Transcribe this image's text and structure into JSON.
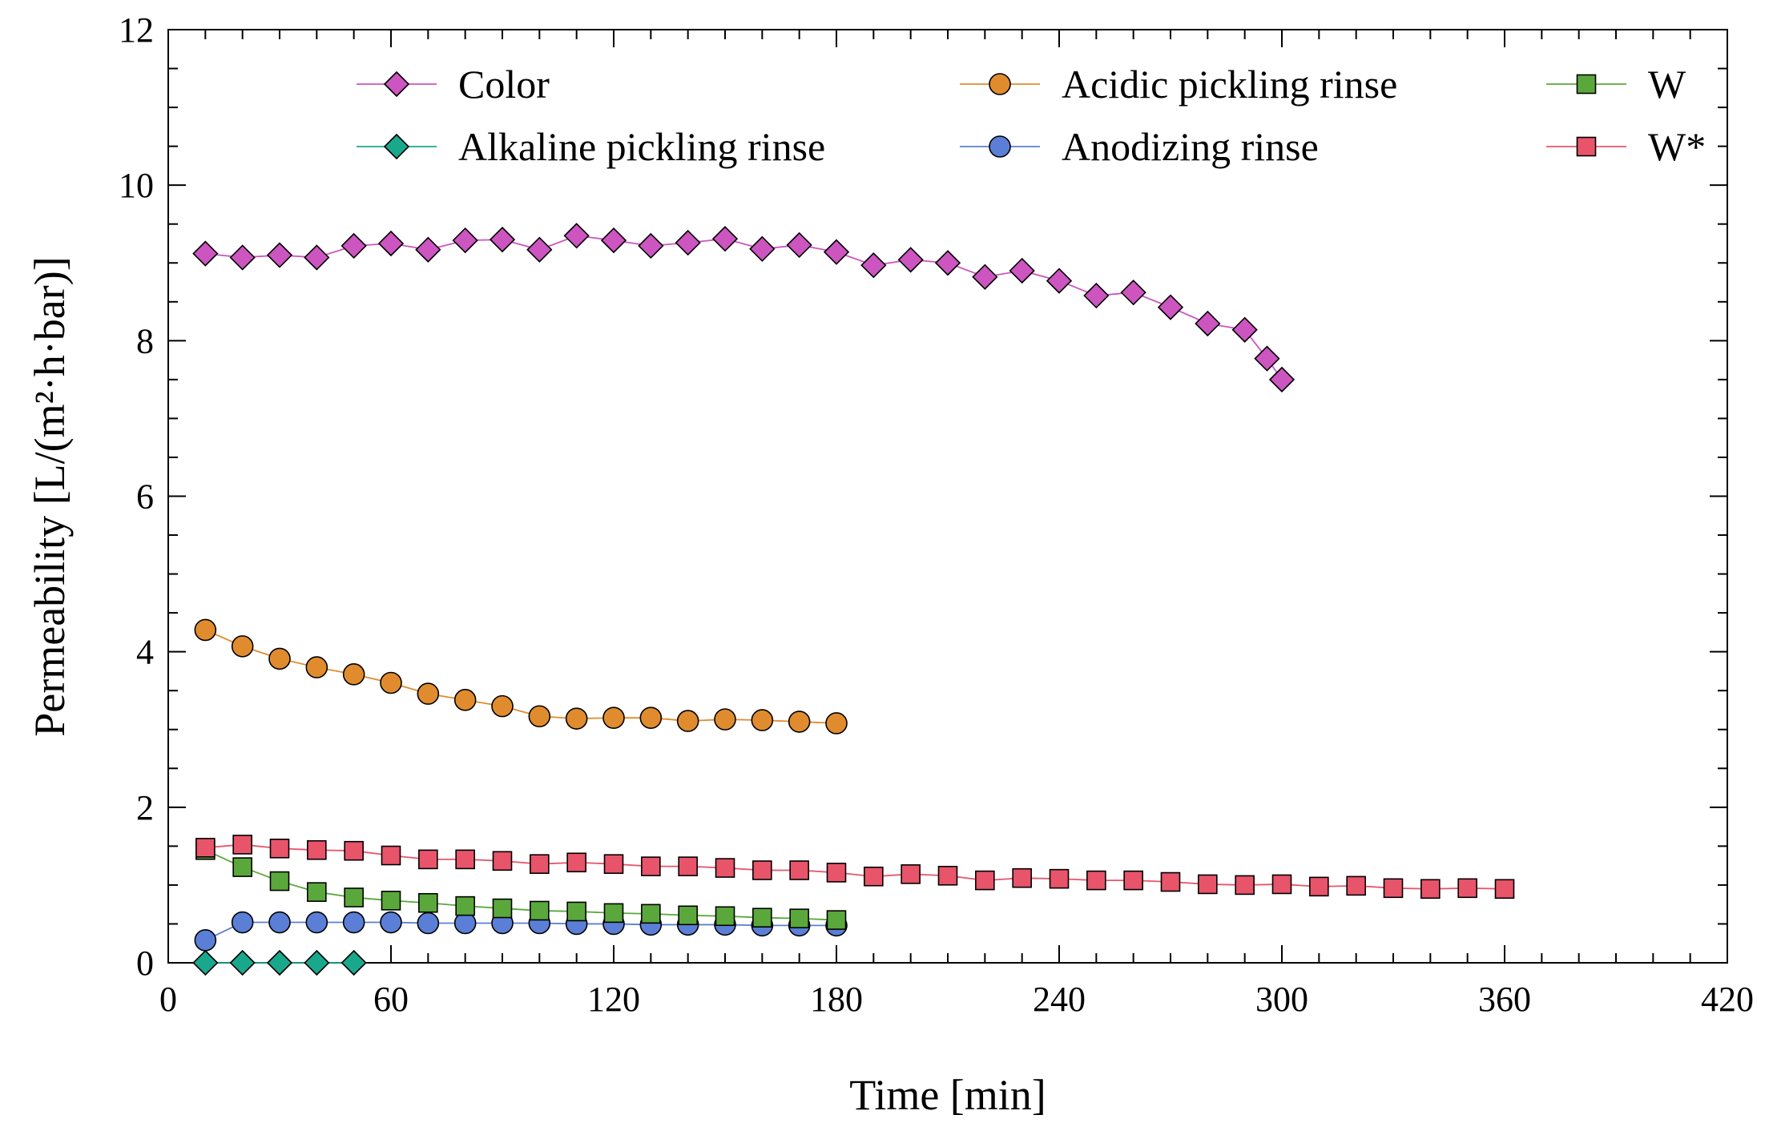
{
  "chart_data": {
    "type": "line",
    "xlabel": "Time [min]",
    "ylabel": "Permeability [L/(m²·h·bar)]",
    "xlim": [
      0,
      420
    ],
    "ylim": [
      0,
      12
    ],
    "xticks": [
      0,
      60,
      120,
      180,
      240,
      300,
      360,
      420
    ],
    "yticks": [
      0,
      2,
      4,
      6,
      8,
      10,
      12
    ],
    "grid": false,
    "legend_position": "top",
    "series": [
      {
        "name": "Color",
        "marker": "diamond",
        "color": "#cc55c0",
        "x": [
          10,
          20,
          30,
          40,
          50,
          60,
          70,
          80,
          90,
          100,
          110,
          120,
          130,
          140,
          150,
          160,
          170,
          180,
          190,
          200,
          210,
          220,
          230,
          240,
          250,
          260,
          270,
          280,
          290,
          296,
          300
        ],
        "y": [
          9.12,
          9.07,
          9.1,
          9.07,
          9.22,
          9.25,
          9.17,
          9.29,
          9.3,
          9.17,
          9.35,
          9.29,
          9.22,
          9.26,
          9.31,
          9.18,
          9.23,
          9.14,
          8.97,
          9.04,
          9.0,
          8.82,
          8.9,
          8.77,
          8.58,
          8.62,
          8.43,
          8.22,
          8.14,
          7.77,
          7.5
        ]
      },
      {
        "name": "Alkaline pickling rinse",
        "marker": "diamond",
        "color": "#1aa88c",
        "x": [
          10,
          20,
          30,
          40,
          50
        ],
        "y": [
          0,
          0,
          0,
          0,
          0
        ]
      },
      {
        "name": "Acidic pickling rinse",
        "marker": "circle",
        "color": "#e08c2e",
        "x": [
          10,
          20,
          30,
          40,
          50,
          60,
          70,
          80,
          90,
          100,
          110,
          120,
          130,
          140,
          150,
          160,
          170,
          180
        ],
        "y": [
          4.28,
          4.07,
          3.91,
          3.8,
          3.71,
          3.6,
          3.46,
          3.38,
          3.3,
          3.17,
          3.14,
          3.15,
          3.15,
          3.11,
          3.13,
          3.12,
          3.1,
          3.08
        ]
      },
      {
        "name": "Anodizing rinse",
        "marker": "circle",
        "color": "#5b7fd6",
        "x": [
          10,
          20,
          30,
          40,
          50,
          60,
          70,
          80,
          90,
          100,
          110,
          120,
          130,
          140,
          150,
          160,
          170,
          180
        ],
        "y": [
          0.29,
          0.52,
          0.52,
          0.52,
          0.52,
          0.52,
          0.51,
          0.51,
          0.51,
          0.51,
          0.5,
          0.5,
          0.49,
          0.49,
          0.49,
          0.48,
          0.48,
          0.48
        ]
      },
      {
        "name": "W",
        "marker": "square",
        "color": "#5aa83c",
        "x": [
          10,
          20,
          30,
          40,
          50,
          60,
          70,
          80,
          90,
          100,
          110,
          120,
          130,
          140,
          150,
          160,
          170,
          180
        ],
        "y": [
          1.45,
          1.23,
          1.05,
          0.91,
          0.84,
          0.8,
          0.77,
          0.73,
          0.7,
          0.67,
          0.66,
          0.64,
          0.63,
          0.61,
          0.6,
          0.58,
          0.57,
          0.55
        ]
      },
      {
        "name": "W*",
        "marker": "square",
        "color": "#e8546a",
        "x": [
          10,
          20,
          30,
          40,
          50,
          60,
          70,
          80,
          90,
          100,
          110,
          120,
          130,
          140,
          150,
          160,
          170,
          180,
          190,
          200,
          210,
          220,
          230,
          240,
          250,
          260,
          270,
          280,
          290,
          300,
          310,
          320,
          330,
          340,
          350,
          360
        ],
        "y": [
          1.48,
          1.52,
          1.47,
          1.45,
          1.44,
          1.38,
          1.33,
          1.33,
          1.31,
          1.27,
          1.29,
          1.27,
          1.24,
          1.24,
          1.22,
          1.19,
          1.19,
          1.16,
          1.11,
          1.14,
          1.12,
          1.06,
          1.09,
          1.08,
          1.06,
          1.06,
          1.04,
          1.01,
          1.0,
          1.01,
          0.98,
          0.99,
          0.96,
          0.95,
          0.96,
          0.95
        ]
      }
    ]
  }
}
